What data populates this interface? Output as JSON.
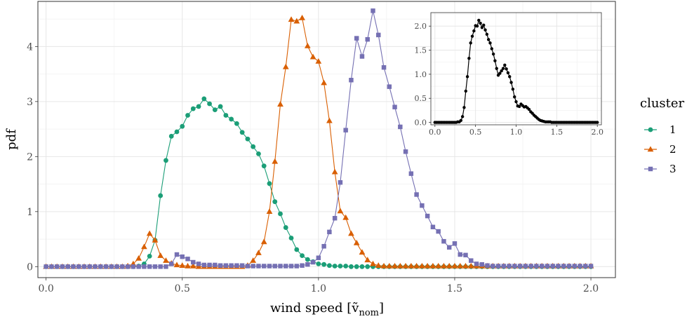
{
  "chart_data": [
    {
      "type": "line",
      "title": "",
      "xlabel_main": "wind speed [",
      "xlabel_v": "ṽ",
      "xlabel_sub": "nom",
      "xlabel_close": "]",
      "ylabel": "pdf",
      "xlim": [
        -0.03,
        2.09
      ],
      "ylim": [
        -0.2,
        4.82
      ],
      "xticks": [
        0.0,
        0.5,
        1.0,
        1.5,
        2.0
      ],
      "xtick_labels": [
        "0.0",
        "0.5",
        "1.0",
        "1.5",
        "2.0"
      ],
      "yticks": [
        0,
        1,
        2,
        3,
        4
      ],
      "ytick_labels": [
        "0",
        "1",
        "2",
        "3",
        "4"
      ],
      "grid": true,
      "legend": {
        "title": "cluster",
        "position": "right"
      },
      "series": [
        {
          "name": "1",
          "color": "#1b9e77",
          "marker": "circle",
          "x": [
            0,
            0.02,
            0.04,
            0.06,
            0.08,
            0.1,
            0.12,
            0.14,
            0.16,
            0.18,
            0.2,
            0.22,
            0.24,
            0.26,
            0.28,
            0.3,
            0.32,
            0.34,
            0.36,
            0.38,
            0.4,
            0.42,
            0.44,
            0.46,
            0.48,
            0.5,
            0.52,
            0.54,
            0.56,
            0.58,
            0.6,
            0.62,
            0.64,
            0.66,
            0.68,
            0.7,
            0.72,
            0.74,
            0.76,
            0.78,
            0.8,
            0.82,
            0.84,
            0.86,
            0.88,
            0.9,
            0.92,
            0.94,
            0.96,
            0.98,
            1.0,
            1.02,
            1.04,
            1.06,
            1.08,
            1.1,
            1.12,
            1.14,
            1.16,
            1.18,
            1.2,
            1.22,
            1.24,
            1.26,
            1.28,
            1.3,
            1.32,
            1.34,
            1.36,
            1.38,
            1.4,
            1.42,
            1.44,
            1.46,
            1.48,
            1.5,
            1.52,
            1.54,
            1.56,
            1.58,
            1.6,
            1.62,
            1.64,
            1.66,
            1.68,
            1.7,
            1.72,
            1.74,
            1.76,
            1.78,
            1.8,
            1.82,
            1.84,
            1.86,
            1.88,
            1.9,
            1.92,
            1.94,
            1.96,
            1.98,
            2.0
          ],
          "y": [
            0,
            0,
            0,
            0,
            0,
            0,
            0,
            0,
            0,
            0,
            0,
            0,
            0,
            0,
            0,
            0,
            0,
            0.01,
            0.05,
            0.19,
            0.48,
            1.29,
            1.93,
            2.37,
            2.45,
            2.55,
            2.75,
            2.87,
            2.91,
            3.05,
            2.96,
            2.85,
            2.91,
            2.75,
            2.68,
            2.6,
            2.44,
            2.32,
            2.18,
            2.05,
            1.83,
            1.51,
            1.18,
            0.96,
            0.71,
            0.52,
            0.31,
            0.2,
            0.13,
            0.09,
            0.05,
            0.04,
            0.02,
            0.01,
            0.01,
            0.01,
            0,
            0,
            0,
            0,
            0,
            0,
            0,
            0,
            0,
            0,
            0,
            0,
            0,
            0,
            0,
            0,
            0,
            0,
            0,
            0,
            0,
            0,
            0,
            0,
            0,
            0,
            0,
            0,
            0,
            0,
            0,
            0,
            0,
            0,
            0,
            0,
            0,
            0,
            0,
            0,
            0,
            0,
            0,
            0,
            0
          ]
        },
        {
          "name": "2",
          "color": "#d95f02",
          "marker": "triangle",
          "x": [
            0,
            0.02,
            0.04,
            0.06,
            0.08,
            0.1,
            0.12,
            0.14,
            0.16,
            0.18,
            0.2,
            0.22,
            0.24,
            0.26,
            0.28,
            0.3,
            0.32,
            0.34,
            0.36,
            0.38,
            0.4,
            0.42,
            0.44,
            0.46,
            0.48,
            0.5,
            0.52,
            0.54,
            0.56,
            0.58,
            0.6,
            0.62,
            0.64,
            0.66,
            0.68,
            0.7,
            0.72,
            0.74,
            0.76,
            0.78,
            0.8,
            0.82,
            0.84,
            0.86,
            0.88,
            0.9,
            0.92,
            0.94,
            0.96,
            0.98,
            1.0,
            1.02,
            1.04,
            1.06,
            1.08,
            1.1,
            1.12,
            1.14,
            1.16,
            1.18,
            1.2,
            1.22,
            1.24,
            1.26,
            1.28,
            1.3,
            1.32,
            1.34,
            1.36,
            1.38,
            1.4,
            1.42,
            1.44,
            1.46,
            1.48,
            1.5,
            1.52,
            1.54,
            1.56,
            1.58,
            1.6,
            1.62,
            1.64,
            1.66,
            1.68,
            1.7,
            1.72,
            1.74,
            1.76,
            1.78,
            1.8,
            1.82,
            1.84,
            1.86,
            1.88,
            1.9,
            1.92,
            1.94,
            1.96,
            1.98,
            2.0
          ],
          "y": [
            0,
            0,
            0,
            0,
            0,
            0,
            0,
            0,
            0,
            0,
            0,
            0,
            0,
            0,
            0,
            0.01,
            0.05,
            0.15,
            0.36,
            0.6,
            0.48,
            0.2,
            0.11,
            0.06,
            0.03,
            0.02,
            0.01,
            0.01,
            0,
            0,
            0,
            0,
            0,
            0,
            0,
            0,
            0,
            0.02,
            0.11,
            0.25,
            0.45,
            1.0,
            1.91,
            2.95,
            3.63,
            4.49,
            4.46,
            4.52,
            4.01,
            3.81,
            3.73,
            3.34,
            2.65,
            1.72,
            1.01,
            0.89,
            0.6,
            0.43,
            0.26,
            0.12,
            0.05,
            0.02,
            0.01,
            0.01,
            0.01,
            0.01,
            0.01,
            0.01,
            0.01,
            0.01,
            0.01,
            0.01,
            0.01,
            0.01,
            0.01,
            0.01,
            0.01,
            0.01,
            0.01,
            0.01,
            0.01,
            0.01,
            0.01,
            0.01,
            0.01,
            0.01,
            0.01,
            0.01,
            0.01,
            0.01,
            0.01,
            0.01,
            0.01,
            0.01,
            0.01,
            0.01,
            0.01,
            0.01,
            0.01,
            0.01,
            0.01
          ]
        },
        {
          "name": "3",
          "color": "#7570b3",
          "marker": "square",
          "x": [
            0,
            0.02,
            0.04,
            0.06,
            0.08,
            0.1,
            0.12,
            0.14,
            0.16,
            0.18,
            0.2,
            0.22,
            0.24,
            0.26,
            0.28,
            0.3,
            0.32,
            0.34,
            0.36,
            0.38,
            0.4,
            0.42,
            0.44,
            0.46,
            0.48,
            0.5,
            0.52,
            0.54,
            0.56,
            0.58,
            0.6,
            0.62,
            0.64,
            0.66,
            0.68,
            0.7,
            0.72,
            0.74,
            0.76,
            0.78,
            0.8,
            0.82,
            0.84,
            0.86,
            0.88,
            0.9,
            0.92,
            0.94,
            0.96,
            0.98,
            1.0,
            1.02,
            1.04,
            1.06,
            1.08,
            1.1,
            1.12,
            1.14,
            1.16,
            1.18,
            1.2,
            1.22,
            1.24,
            1.26,
            1.28,
            1.3,
            1.32,
            1.34,
            1.36,
            1.38,
            1.4,
            1.42,
            1.44,
            1.46,
            1.48,
            1.5,
            1.52,
            1.54,
            1.56,
            1.58,
            1.6,
            1.62,
            1.64,
            1.66,
            1.68,
            1.7,
            1.72,
            1.74,
            1.76,
            1.78,
            1.8,
            1.82,
            1.84,
            1.86,
            1.88,
            1.9,
            1.92,
            1.94,
            1.96,
            1.98,
            2.0
          ],
          "y": [
            0,
            0,
            0,
            0,
            0,
            0,
            0,
            0,
            0,
            0,
            0,
            0,
            0,
            0,
            0,
            0,
            0,
            0,
            0,
            0,
            0,
            0,
            0,
            0.05,
            0.22,
            0.18,
            0.14,
            0.08,
            0.05,
            0.03,
            0.03,
            0.03,
            0.02,
            0.02,
            0.02,
            0.02,
            0.02,
            0.01,
            0.01,
            0.01,
            0.01,
            0.01,
            0.01,
            0.01,
            0.01,
            0.01,
            0.01,
            0.02,
            0.04,
            0.08,
            0.16,
            0.37,
            0.63,
            0.88,
            1.53,
            2.48,
            3.39,
            4.15,
            3.82,
            4.13,
            4.65,
            4.21,
            3.62,
            3.27,
            2.9,
            2.54,
            2.09,
            1.69,
            1.31,
            1.11,
            0.92,
            0.72,
            0.64,
            0.46,
            0.35,
            0.42,
            0.22,
            0.21,
            0.11,
            0.05,
            0.04,
            0.02,
            0.01,
            0.01,
            0.01,
            0.01,
            0.01,
            0.01,
            0.01,
            0.01,
            0.01,
            0.01,
            0.01,
            0.01,
            0.01,
            0.01,
            0.01,
            0.01,
            0.01,
            0.01,
            0.01
          ]
        }
      ]
    },
    {
      "type": "line",
      "title": "",
      "xlim": [
        -0.05,
        2.05
      ],
      "ylim": [
        -0.05,
        2.28
      ],
      "xticks": [
        0.0,
        0.5,
        1.0,
        1.5,
        2.0
      ],
      "xtick_labels": [
        "0.0",
        "0.5",
        "1.0",
        "1.5",
        "2.0"
      ],
      "yticks": [
        0.0,
        0.5,
        1.0,
        1.5,
        2.0
      ],
      "ytick_labels": [
        "0.0",
        "0.5",
        "1.0",
        "1.5",
        "2.0"
      ],
      "grid": true,
      "series": [
        {
          "color": "#000000",
          "marker": "circle",
          "x": [
            0,
            0.02,
            0.04,
            0.06,
            0.08,
            0.1,
            0.12,
            0.14,
            0.16,
            0.18,
            0.2,
            0.22,
            0.24,
            0.26,
            0.28,
            0.3,
            0.32,
            0.34,
            0.36,
            0.38,
            0.4,
            0.42,
            0.44,
            0.46,
            0.48,
            0.5,
            0.52,
            0.54,
            0.56,
            0.58,
            0.6,
            0.62,
            0.64,
            0.66,
            0.68,
            0.7,
            0.72,
            0.74,
            0.76,
            0.78,
            0.8,
            0.82,
            0.84,
            0.86,
            0.88,
            0.9,
            0.92,
            0.94,
            0.96,
            0.98,
            1.0,
            1.02,
            1.04,
            1.06,
            1.08,
            1.1,
            1.12,
            1.14,
            1.16,
            1.18,
            1.2,
            1.22,
            1.24,
            1.26,
            1.28,
            1.3,
            1.32,
            1.34,
            1.36,
            1.38,
            1.4,
            1.42,
            1.44,
            1.46,
            1.48,
            1.5,
            1.52,
            1.54,
            1.56,
            1.58,
            1.6,
            1.62,
            1.64,
            1.66,
            1.68,
            1.7,
            1.72,
            1.74,
            1.76,
            1.78,
            1.8,
            1.82,
            1.84,
            1.86,
            1.88,
            1.9,
            1.92,
            1.94,
            1.96,
            1.98,
            2.0
          ],
          "y": [
            0,
            0,
            0,
            0,
            0,
            0,
            0,
            0,
            0,
            0,
            0,
            0,
            0,
            0,
            0.01,
            0.01,
            0.04,
            0.12,
            0.31,
            0.65,
            0.95,
            1.33,
            1.65,
            1.79,
            1.9,
            2.01,
            2.0,
            2.12,
            2.06,
            1.97,
            2.02,
            1.92,
            1.83,
            1.72,
            1.65,
            1.53,
            1.42,
            1.28,
            1.12,
            0.98,
            1.02,
            1.07,
            1.12,
            1.19,
            1.11,
            1.03,
            0.95,
            0.83,
            0.69,
            0.53,
            0.43,
            0.34,
            0.33,
            0.38,
            0.35,
            0.32,
            0.33,
            0.3,
            0.27,
            0.22,
            0.19,
            0.15,
            0.12,
            0.09,
            0.06,
            0.04,
            0.03,
            0.02,
            0.01,
            0.01,
            0.01,
            0.01,
            0,
            0,
            0,
            0,
            0,
            0,
            0,
            0,
            0,
            0,
            0,
            0,
            0,
            0,
            0,
            0,
            0,
            0,
            0,
            0,
            0,
            0,
            0,
            0,
            0,
            0,
            0,
            0,
            0
          ]
        }
      ]
    }
  ]
}
